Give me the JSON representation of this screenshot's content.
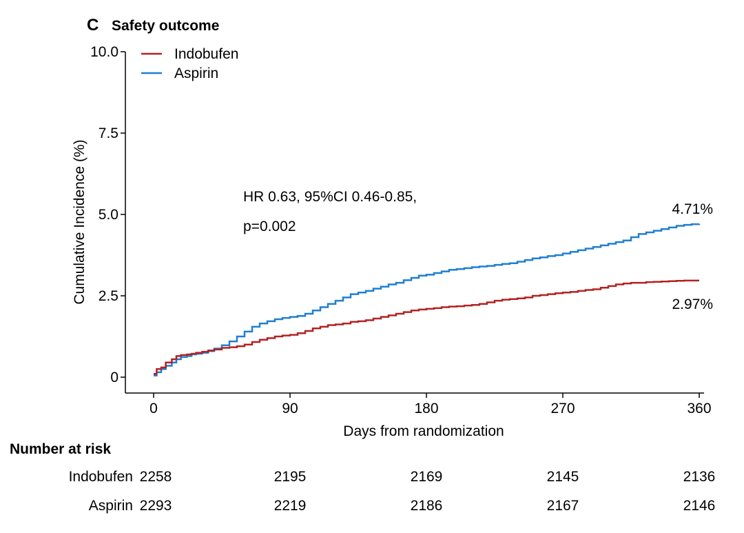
{
  "chart_data": {
    "type": "line",
    "panel_letter": "C",
    "title": "Safety outcome",
    "xlabel": "Days from randomization",
    "ylabel": "Cumulative Incidence (%)",
    "xlim": [
      0,
      360
    ],
    "ylim": [
      0,
      10
    ],
    "xticks": [
      0,
      90,
      180,
      270,
      360
    ],
    "xtick_labels": [
      "0",
      "90",
      "180",
      "270",
      "360"
    ],
    "yticks": [
      0,
      2.5,
      5,
      7.5,
      10
    ],
    "ytick_labels": [
      "0",
      "2.5",
      "5.0",
      "7.5",
      "10.0"
    ],
    "grid": false,
    "legend_position": "top-left",
    "annotation_line1": "HR 0.63, 95%CI 0.46-0.85,",
    "annotation_line2": "p=0.002",
    "series": [
      {
        "name": "Indobufen",
        "color": "#b22222",
        "end_label": "2.97%",
        "x": [
          0,
          2,
          5,
          8,
          12,
          15,
          18,
          22,
          25,
          28,
          32,
          36,
          40,
          45,
          50,
          55,
          60,
          65,
          70,
          75,
          80,
          85,
          90,
          95,
          100,
          105,
          110,
          115,
          120,
          125,
          130,
          135,
          140,
          145,
          150,
          155,
          160,
          165,
          170,
          175,
          180,
          185,
          190,
          195,
          200,
          205,
          210,
          215,
          220,
          225,
          230,
          235,
          240,
          245,
          250,
          255,
          260,
          265,
          270,
          275,
          280,
          285,
          290,
          295,
          300,
          305,
          310,
          315,
          320,
          325,
          330,
          335,
          340,
          345,
          350,
          355,
          360
        ],
        "y": [
          0.1,
          0.25,
          0.3,
          0.45,
          0.55,
          0.65,
          0.68,
          0.7,
          0.72,
          0.75,
          0.78,
          0.82,
          0.85,
          0.9,
          0.92,
          0.95,
          1.0,
          1.08,
          1.15,
          1.2,
          1.25,
          1.28,
          1.3,
          1.35,
          1.42,
          1.5,
          1.55,
          1.6,
          1.62,
          1.65,
          1.7,
          1.72,
          1.75,
          1.8,
          1.85,
          1.9,
          1.95,
          2.0,
          2.05,
          2.08,
          2.1,
          2.12,
          2.15,
          2.17,
          2.18,
          2.2,
          2.22,
          2.25,
          2.3,
          2.35,
          2.38,
          2.4,
          2.42,
          2.45,
          2.5,
          2.52,
          2.55,
          2.58,
          2.6,
          2.62,
          2.65,
          2.68,
          2.7,
          2.75,
          2.8,
          2.85,
          2.88,
          2.9,
          2.9,
          2.92,
          2.93,
          2.94,
          2.95,
          2.96,
          2.97,
          2.97,
          2.97
        ]
      },
      {
        "name": "Aspirin",
        "color": "#1f7fd0",
        "end_label": "4.71%",
        "x": [
          0,
          2,
          5,
          8,
          12,
          15,
          18,
          22,
          25,
          28,
          32,
          36,
          40,
          45,
          50,
          55,
          60,
          65,
          70,
          75,
          80,
          85,
          90,
          95,
          100,
          105,
          110,
          115,
          120,
          125,
          130,
          135,
          140,
          145,
          150,
          155,
          160,
          165,
          170,
          175,
          180,
          185,
          190,
          195,
          200,
          205,
          210,
          215,
          220,
          225,
          230,
          235,
          240,
          245,
          250,
          255,
          260,
          265,
          270,
          275,
          280,
          285,
          290,
          295,
          300,
          305,
          310,
          315,
          320,
          325,
          330,
          335,
          340,
          345,
          350,
          355,
          360
        ],
        "y": [
          0.05,
          0.15,
          0.25,
          0.35,
          0.45,
          0.55,
          0.62,
          0.65,
          0.7,
          0.72,
          0.75,
          0.8,
          0.88,
          0.98,
          1.1,
          1.25,
          1.4,
          1.55,
          1.65,
          1.72,
          1.78,
          1.82,
          1.85,
          1.88,
          1.95,
          2.05,
          2.15,
          2.25,
          2.35,
          2.45,
          2.55,
          2.6,
          2.65,
          2.72,
          2.78,
          2.85,
          2.9,
          2.98,
          3.05,
          3.12,
          3.15,
          3.2,
          3.25,
          3.3,
          3.32,
          3.35,
          3.38,
          3.4,
          3.42,
          3.45,
          3.48,
          3.5,
          3.55,
          3.6,
          3.65,
          3.68,
          3.72,
          3.75,
          3.8,
          3.85,
          3.9,
          3.95,
          4.0,
          4.05,
          4.1,
          4.15,
          4.2,
          4.3,
          4.4,
          4.45,
          4.5,
          4.55,
          4.6,
          4.65,
          4.68,
          4.7,
          4.71
        ]
      }
    ]
  },
  "risk_table": {
    "header": "Number at risk",
    "rows": [
      {
        "label": "Indobufen",
        "values": [
          "2258",
          "2195",
          "2169",
          "2145",
          "2136"
        ]
      },
      {
        "label": "Aspirin",
        "values": [
          "2293",
          "2219",
          "2186",
          "2167",
          "2146"
        ]
      }
    ]
  }
}
